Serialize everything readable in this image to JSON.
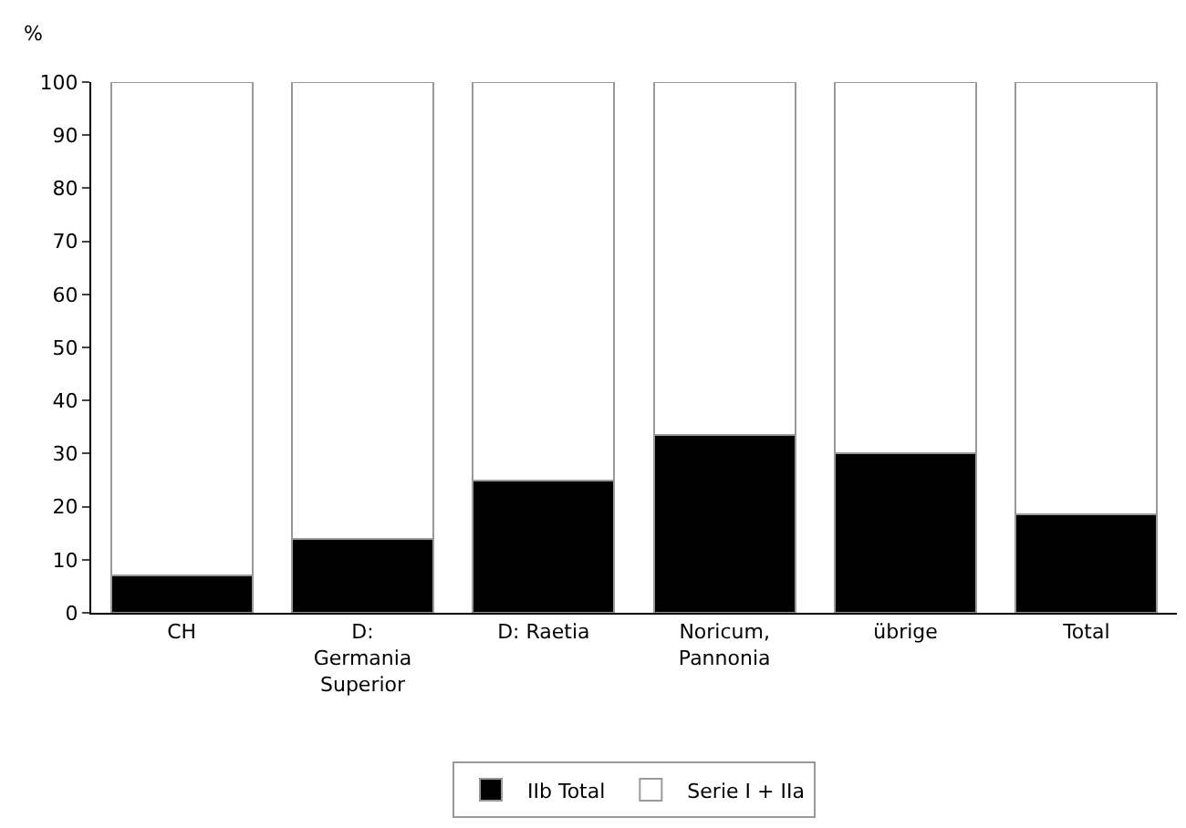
{
  "chart_data": {
    "type": "bar",
    "stacked": true,
    "ylabel": "%",
    "categories": [
      "CH",
      "D: Germania Superior",
      "D: Raetia",
      "Noricum, Pannonia",
      "übrige",
      "Total"
    ],
    "series": [
      {
        "name": "IIb Total",
        "color": "#000000",
        "values": [
          7,
          14,
          25,
          33.5,
          30,
          18.5
        ]
      },
      {
        "name": "Serie I + IIa",
        "color": "#ffffff",
        "values": [
          93,
          86,
          75,
          66.5,
          70,
          81.5
        ]
      }
    ],
    "ylim": [
      0,
      100
    ],
    "yticks": [
      0,
      10,
      20,
      30,
      40,
      50,
      60,
      70,
      80,
      90,
      100
    ],
    "legend": "bottom"
  }
}
